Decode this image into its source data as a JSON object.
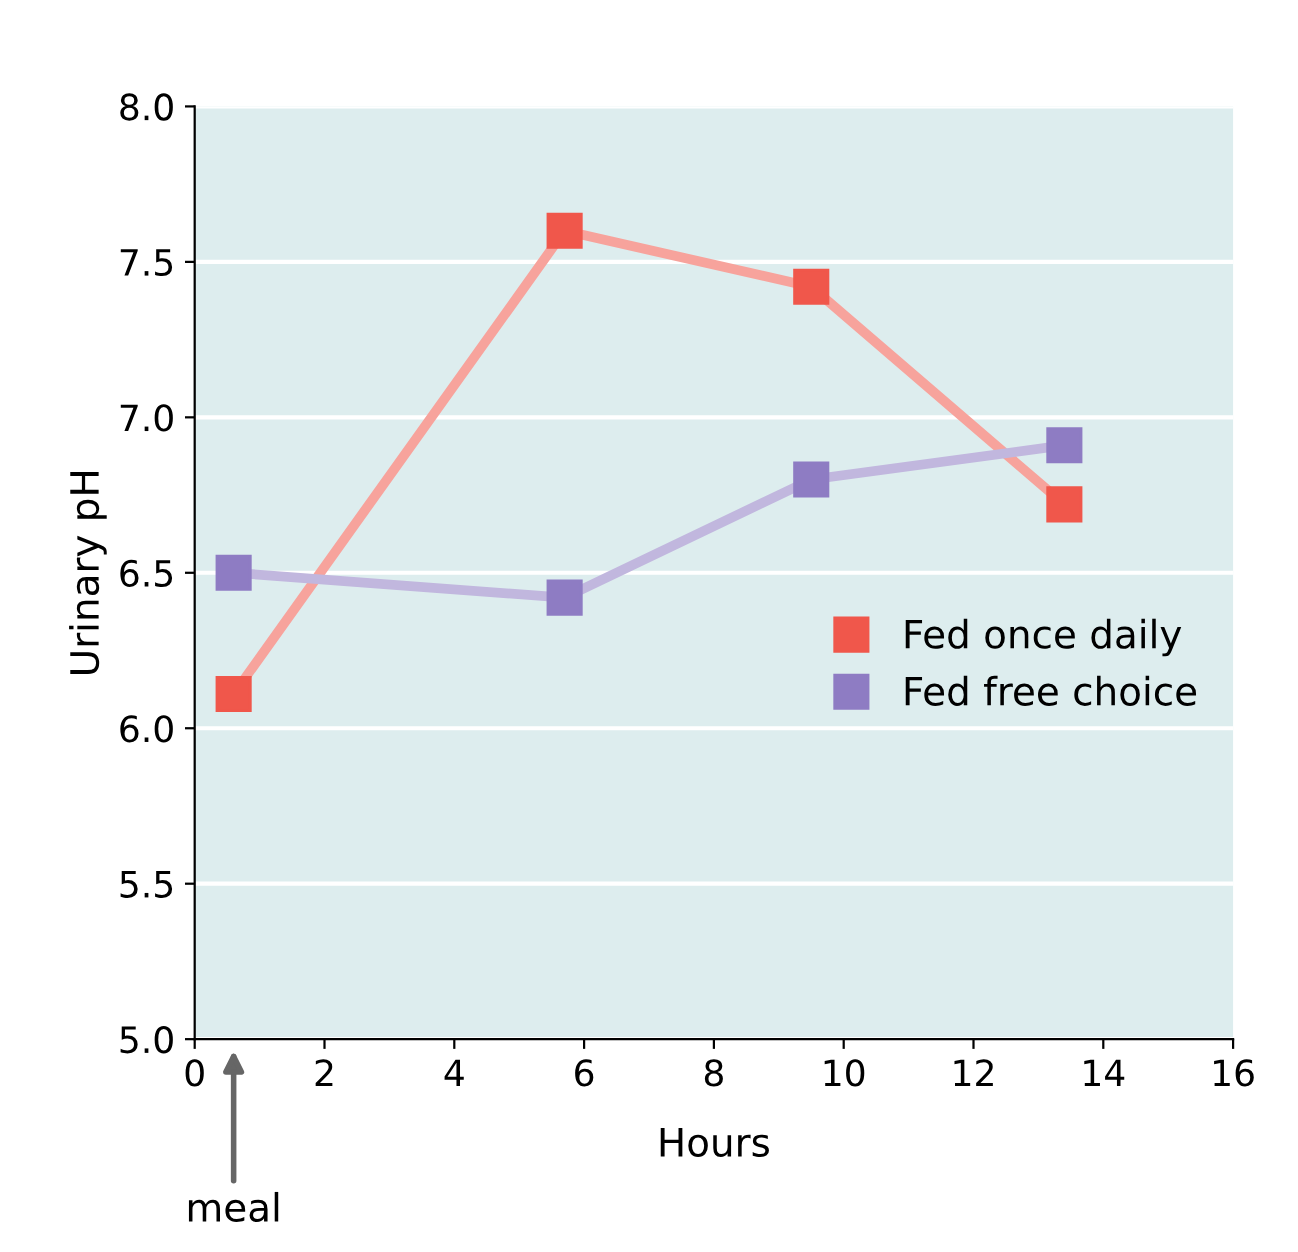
{
  "chart_data": {
    "type": "line",
    "xlabel": "Hours",
    "ylabel": "Urinary pH",
    "series": [
      {
        "name": "Fed once daily",
        "color": "#f0574b",
        "x": [
          0.6,
          5.7,
          9.5,
          13.4
        ],
        "values": [
          6.11,
          7.6,
          7.42,
          6.72
        ]
      },
      {
        "name": "Fed free choice",
        "color": "#8e7cc3",
        "x": [
          0.6,
          5.7,
          9.5,
          13.4
        ],
        "values": [
          6.5,
          6.42,
          6.8,
          6.91
        ]
      }
    ],
    "xlim": [
      0,
      16
    ],
    "xticks": [
      0,
      2,
      4,
      6,
      8,
      10,
      12,
      14,
      16
    ],
    "ylim": [
      5.0,
      8.0
    ],
    "yticks": [
      {
        "value": 5.0,
        "label": "5.0"
      },
      {
        "value": 5.5,
        "label": "5.5"
      },
      {
        "value": 6.0,
        "label": "6.0"
      },
      {
        "value": 6.5,
        "label": "6.5"
      },
      {
        "value": 7.0,
        "label": "7.0"
      },
      {
        "value": 7.5,
        "label": "7.5"
      },
      {
        "value": 8.0,
        "label": "8.0"
      }
    ],
    "grid": "y",
    "legend": "right",
    "marker": "square",
    "line_style": "solid",
    "annotations": [
      "meal"
    ]
  }
}
